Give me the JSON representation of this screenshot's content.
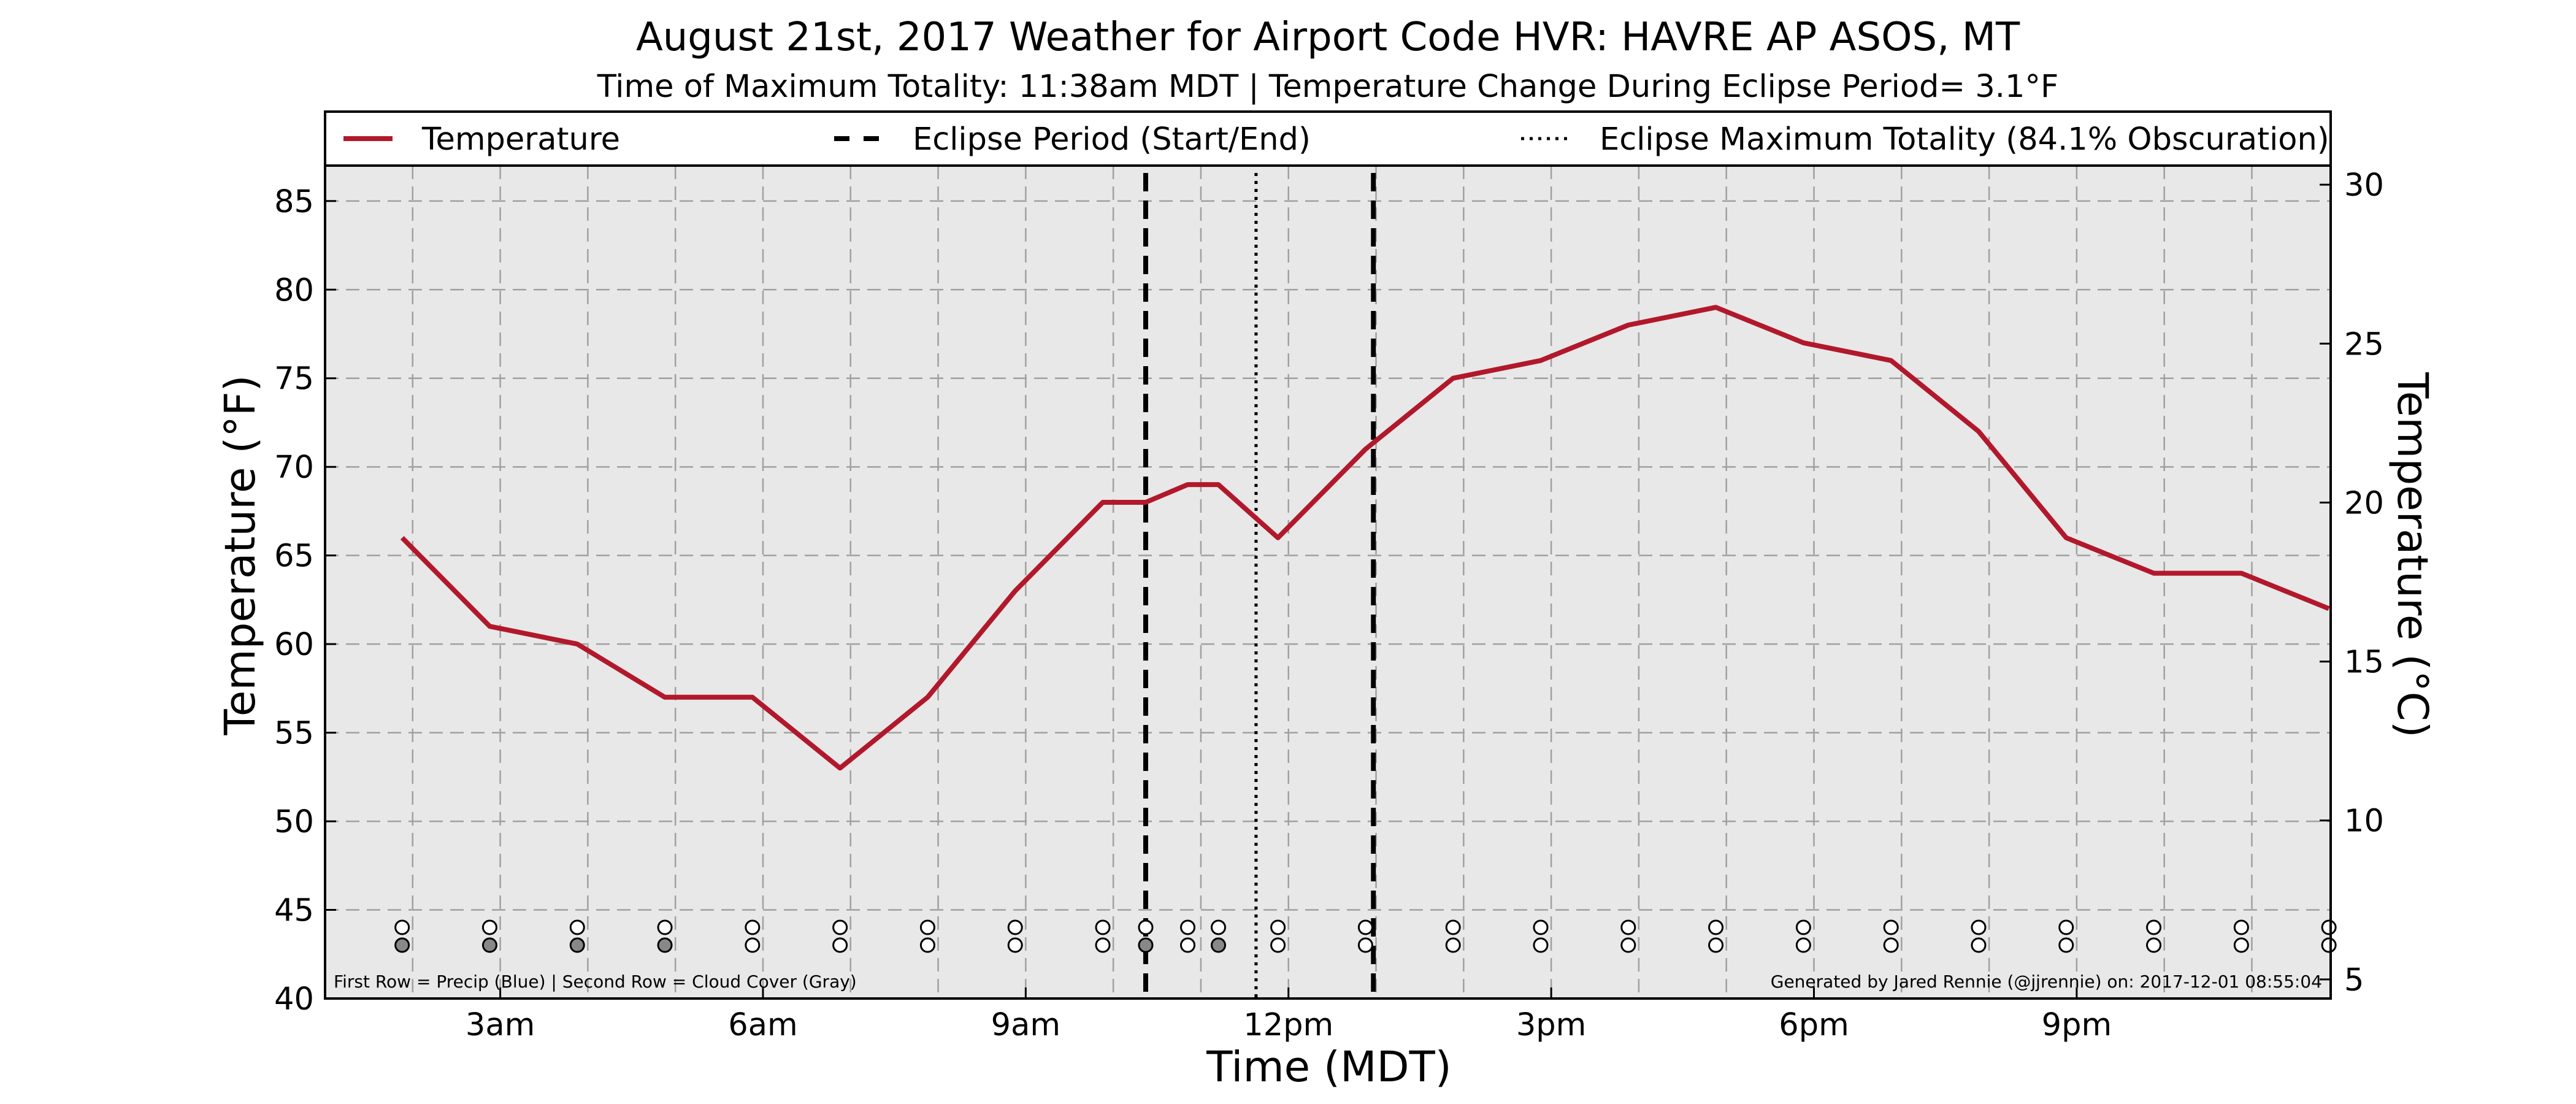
{
  "chart_data": {
    "type": "line",
    "title": "August 21st, 2017 Weather for Airport Code HVR: HAVRE AP ASOS, MT",
    "subtitle": "Time of Maximum Totality: 11:38am MDT | Temperature Change During Eclipse Period= 3.1°F",
    "xlabel": "Time (MDT)",
    "ylabel": "Temperature (°F)",
    "ylabel_right": "Temperature (°C)",
    "xlim": [
      1.0,
      23.9
    ],
    "ylim": [
      40,
      87
    ],
    "ylim_right_celsius": [
      4.4,
      30.6
    ],
    "x_ticks": [
      {
        "x": 3,
        "label": "3am"
      },
      {
        "x": 6,
        "label": "6am"
      },
      {
        "x": 9,
        "label": "9am"
      },
      {
        "x": 12,
        "label": "12pm"
      },
      {
        "x": 15,
        "label": "3pm"
      },
      {
        "x": 18,
        "label": "6pm"
      },
      {
        "x": 21,
        "label": "9pm"
      }
    ],
    "y_ticks": [
      40,
      45,
      50,
      55,
      60,
      65,
      70,
      75,
      80,
      85
    ],
    "y_ticks_right": [
      5,
      10,
      15,
      20,
      25,
      30
    ],
    "grid": true,
    "legend_placement": "top",
    "legend": [
      {
        "label": "Temperature",
        "style": "solid",
        "color": "#b2182b"
      },
      {
        "label": "Eclipse Period (Start/End)",
        "style": "dashed",
        "color": "#000000"
      },
      {
        "label": "Eclipse Maximum Totality (84.1% Obscuration)",
        "style": "dotted",
        "color": "#000000"
      }
    ],
    "series": [
      {
        "name": "Temperature",
        "color": "#b2182b",
        "x": [
          1.88,
          2.88,
          3.88,
          4.88,
          5.88,
          6.88,
          7.88,
          8.88,
          9.88,
          10.37,
          10.85,
          11.2,
          11.88,
          12.88,
          13.88,
          14.88,
          15.88,
          16.88,
          17.88,
          18.88,
          19.88,
          20.88,
          21.88,
          22.88,
          23.88
        ],
        "y": [
          66,
          61,
          60,
          57,
          57,
          53,
          57,
          63,
          68,
          68,
          69,
          69,
          66,
          71,
          75,
          76,
          78,
          79,
          77,
          76,
          72,
          66,
          64,
          64,
          62
        ]
      }
    ],
    "eclipse_start": 10.37,
    "eclipse_end": 12.97,
    "eclipse_max": 11.63,
    "observation_markers": {
      "x": [
        1.88,
        2.88,
        3.88,
        4.88,
        5.88,
        6.88,
        7.88,
        8.88,
        9.88,
        10.37,
        10.85,
        11.2,
        11.88,
        12.88,
        13.88,
        14.88,
        15.88,
        16.88,
        17.88,
        18.88,
        19.88,
        20.88,
        21.88,
        22.88,
        23.88
      ],
      "precip_filled": [
        false,
        false,
        false,
        false,
        false,
        false,
        false,
        false,
        false,
        false,
        false,
        false,
        false,
        false,
        false,
        false,
        false,
        false,
        false,
        false,
        false,
        false,
        false,
        false,
        false
      ],
      "cloud_filled": [
        true,
        true,
        true,
        true,
        false,
        false,
        false,
        false,
        false,
        true,
        false,
        true,
        false,
        false,
        false,
        false,
        false,
        false,
        false,
        false,
        false,
        false,
        false,
        false,
        false
      ]
    },
    "footnote_left": "First Row = Precip (Blue) | Second Row = Cloud Cover (Gray)",
    "footnote_right": "Generated by Jared Rennie (@jjrennie) on: 2017-12-01 08:55:04",
    "colors": {
      "plot_background": "#e8e8e8",
      "temperature_line": "#b2182b",
      "cloud_fill": "#888888"
    }
  }
}
